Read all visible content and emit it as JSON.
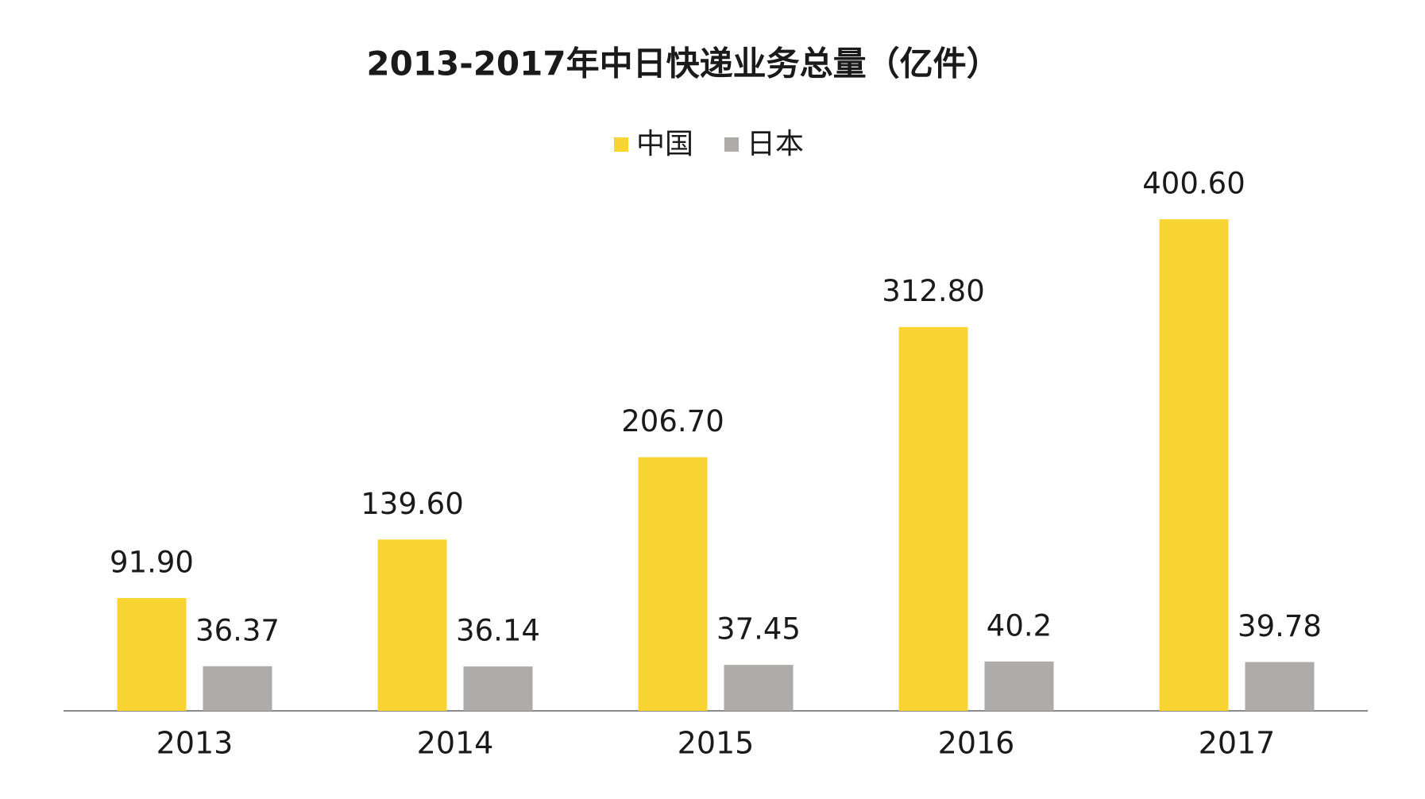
{
  "chart_data": {
    "type": "bar",
    "title": "2013-2017年中日快递业务总量（亿件）",
    "categories": [
      "2013",
      "2014",
      "2015",
      "2016",
      "2017"
    ],
    "series": [
      {
        "name": "中国",
        "color": "#f9d533",
        "values": [
          91.9,
          139.6,
          206.7,
          312.8,
          400.6
        ],
        "value_labels": [
          "91.90",
          "139.60",
          "206.70",
          "312.80",
          "400.60"
        ]
      },
      {
        "name": "日本",
        "color": "#aeabab",
        "values": [
          36.37,
          36.14,
          37.45,
          40.2,
          39.78
        ]
      }
    ],
    "legend": "top"
  }
}
